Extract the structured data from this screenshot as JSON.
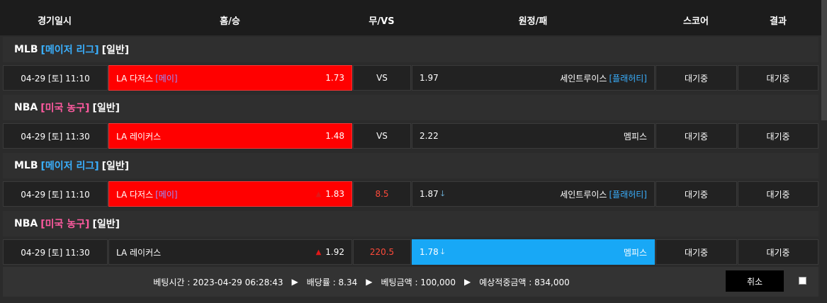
{
  "header": {
    "columns": [
      "경기일시",
      "홈/승",
      "무/VS",
      "원정/패",
      "스코어",
      "결과"
    ]
  },
  "groups": [
    {
      "league": {
        "sport": "MLB",
        "name": "[메이저 리그]",
        "kind": "[일반]"
      },
      "match": {
        "datetime": "04-29 [토] 11:10",
        "home_team": "LA 다저스",
        "home_pitcher": "[메이]",
        "home_odds": "1.73",
        "draw": "VS",
        "away_odds": "1.97",
        "away_team": "세인트루이스",
        "away_pitcher": "[플래허티]",
        "score": "대기중",
        "result": "대기중"
      }
    },
    {
      "league": {
        "sport": "NBA",
        "name": "[미국 농구]",
        "kind": "[일반]"
      },
      "match": {
        "datetime": "04-29 [토] 11:30",
        "home_team": "LA 레이커스",
        "home_odds": "1.48",
        "draw": "VS",
        "away_odds": "2.22",
        "away_team": "멤피스",
        "score": "대기중",
        "result": "대기중"
      }
    },
    {
      "league": {
        "sport": "MLB",
        "name": "[메이저 리그]",
        "kind": "[일반]"
      },
      "match": {
        "datetime": "04-29 [토] 11:10",
        "home_team": "LA 다저스",
        "home_pitcher": "[메이]",
        "home_odds": "1.83",
        "draw": "8.5",
        "away_odds": "1.87",
        "away_team": "세인트루이스",
        "away_pitcher": "[플래허티]",
        "score": "대기중",
        "result": "대기중"
      }
    },
    {
      "league": {
        "sport": "NBA",
        "name": "[미국 농구]",
        "kind": "[일반]"
      },
      "match": {
        "datetime": "04-29 [토] 11:30",
        "home_team": "LA 레이커스",
        "home_odds": "1.92",
        "draw": "220.5",
        "away_odds": "1.78",
        "away_team": "멤피스",
        "score": "대기중",
        "result": "대기중"
      }
    }
  ],
  "footer": {
    "items": [
      "베팅시간 : 2023-04-29 06:28:43",
      "배당률 : 8.34",
      "베팅금액 : 100,000",
      "예상적중금액 : 834,000"
    ],
    "cancel": "취소"
  }
}
